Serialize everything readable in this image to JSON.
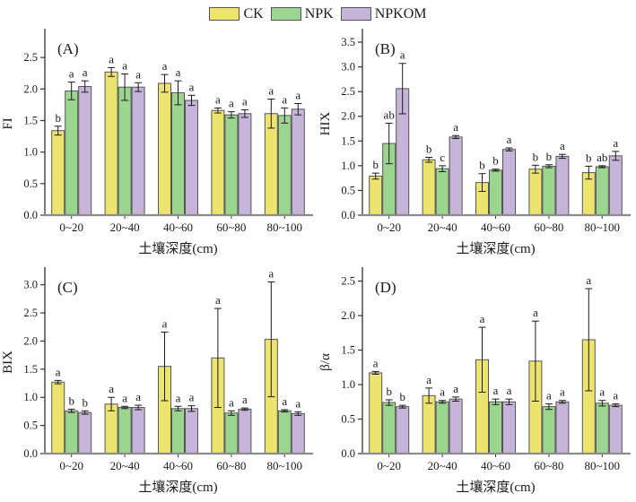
{
  "legend": {
    "items": [
      {
        "label": "CK",
        "color": "#EDE46F"
      },
      {
        "label": "NPK",
        "color": "#9CD590"
      },
      {
        "label": "NPKOM",
        "color": "#C6B4D9"
      }
    ]
  },
  "style": {
    "bar_edge_color": "#555555",
    "error_bar_color": "#1a1a1a",
    "left_spine_color": "#333333",
    "bottom_axis_color": "#8c8c8c"
  },
  "chart_data": [
    {
      "type": "bar",
      "panel_label": "(A)",
      "ylabel": "FI",
      "xlabel": "土壤深度(cm)",
      "ylim": [
        0,
        2.9
      ],
      "yticks": [
        "0.0",
        "0.5",
        "1.0",
        "1.5",
        "2.0",
        "2.5"
      ],
      "categories": [
        "0~20",
        "20~40",
        "40~60",
        "60~80",
        "80~100"
      ],
      "series": [
        {
          "name": "CK",
          "values": [
            1.34,
            2.27,
            2.09,
            1.66,
            1.61
          ],
          "errors": [
            0.07,
            0.07,
            0.14,
            0.04,
            0.23
          ],
          "letters": [
            "b",
            "a",
            "a",
            "a",
            "a"
          ]
        },
        {
          "name": "NPK",
          "values": [
            1.97,
            2.03,
            1.94,
            1.59,
            1.58
          ],
          "errors": [
            0.14,
            0.21,
            0.19,
            0.05,
            0.12
          ],
          "letters": [
            "a",
            "a",
            "a",
            "a",
            "a"
          ]
        },
        {
          "name": "NPKOM",
          "values": [
            2.04,
            2.03,
            1.82,
            1.61,
            1.68
          ],
          "errors": [
            0.09,
            0.07,
            0.08,
            0.06,
            0.09
          ],
          "letters": [
            "a",
            "a",
            "a",
            "a",
            "a"
          ]
        }
      ]
    },
    {
      "type": "bar",
      "panel_label": "(B)",
      "ylabel": "HIX",
      "xlabel": "土壤深度(cm)",
      "ylim": [
        0,
        3.7
      ],
      "yticks": [
        "0.0",
        "0.5",
        "1.0",
        "1.5",
        "2.0",
        "2.5",
        "3.0",
        "3.5"
      ],
      "categories": [
        "0~20",
        "20~40",
        "40~60",
        "60~80",
        "80~100"
      ],
      "series": [
        {
          "name": "CK",
          "values": [
            0.79,
            1.12,
            0.66,
            0.93,
            0.86
          ],
          "errors": [
            0.06,
            0.05,
            0.18,
            0.08,
            0.13
          ],
          "letters": [
            "b",
            "b",
            "b",
            "b",
            "b"
          ]
        },
        {
          "name": "NPK",
          "values": [
            1.45,
            0.94,
            0.91,
            0.99,
            0.98
          ],
          "errors": [
            0.41,
            0.06,
            0.02,
            0.03,
            0.02
          ],
          "letters": [
            "ab",
            "c",
            "b",
            "b",
            "ab"
          ]
        },
        {
          "name": "NPKOM",
          "values": [
            2.56,
            1.58,
            1.33,
            1.19,
            1.2
          ],
          "errors": [
            0.51,
            0.03,
            0.03,
            0.04,
            0.09
          ],
          "letters": [
            "a",
            "a",
            "a",
            "a",
            "a"
          ]
        }
      ]
    },
    {
      "type": "bar",
      "panel_label": "(C)",
      "ylabel": "BIX",
      "xlabel": "土壤深度(cm)",
      "ylim": [
        0,
        3.25
      ],
      "yticks": [
        "0.0",
        "0.5",
        "1.0",
        "1.5",
        "2.0",
        "2.5",
        "3.0"
      ],
      "categories": [
        "0~20",
        "20~40",
        "40~60",
        "60~80",
        "80~100"
      ],
      "series": [
        {
          "name": "CK",
          "values": [
            1.27,
            0.88,
            1.55,
            1.7,
            2.03
          ],
          "errors": [
            0.03,
            0.12,
            0.61,
            0.88,
            1.02
          ],
          "letters": [
            "a",
            "a",
            "a",
            "a",
            "a"
          ]
        },
        {
          "name": "NPK",
          "values": [
            0.76,
            0.82,
            0.8,
            0.72,
            0.76
          ],
          "errors": [
            0.03,
            0.02,
            0.04,
            0.04,
            0.02
          ],
          "letters": [
            "b",
            "a",
            "a",
            "a",
            "a"
          ]
        },
        {
          "name": "NPKOM",
          "values": [
            0.73,
            0.82,
            0.8,
            0.79,
            0.71
          ],
          "errors": [
            0.03,
            0.04,
            0.05,
            0.02,
            0.03
          ],
          "letters": [
            "b",
            "a",
            "a",
            "a",
            "a"
          ]
        }
      ]
    },
    {
      "type": "bar",
      "panel_label": "(D)",
      "ylabel": "β/α",
      "xlabel": "土壤深度(cm)",
      "ylim": [
        0,
        2.65
      ],
      "yticks": [
        "0.0",
        "0.5",
        "1.0",
        "1.5",
        "2.0",
        "2.5"
      ],
      "categories": [
        "0~20",
        "20~40",
        "40~60",
        "60~80",
        "80~100"
      ],
      "series": [
        {
          "name": "CK",
          "values": [
            1.17,
            0.84,
            1.36,
            1.34,
            1.65
          ],
          "errors": [
            0.02,
            0.11,
            0.47,
            0.58,
            0.74
          ],
          "letters": [
            "a",
            "a",
            "a",
            "a",
            "a"
          ]
        },
        {
          "name": "NPK",
          "values": [
            0.74,
            0.75,
            0.75,
            0.68,
            0.73
          ],
          "errors": [
            0.04,
            0.02,
            0.04,
            0.04,
            0.04
          ],
          "letters": [
            "b",
            "a",
            "a",
            "a",
            "a"
          ]
        },
        {
          "name": "NPKOM",
          "values": [
            0.68,
            0.79,
            0.75,
            0.75,
            0.7
          ],
          "errors": [
            0.02,
            0.03,
            0.04,
            0.02,
            0.02
          ],
          "letters": [
            "b",
            "a",
            "a",
            "a",
            "a"
          ]
        }
      ]
    }
  ]
}
